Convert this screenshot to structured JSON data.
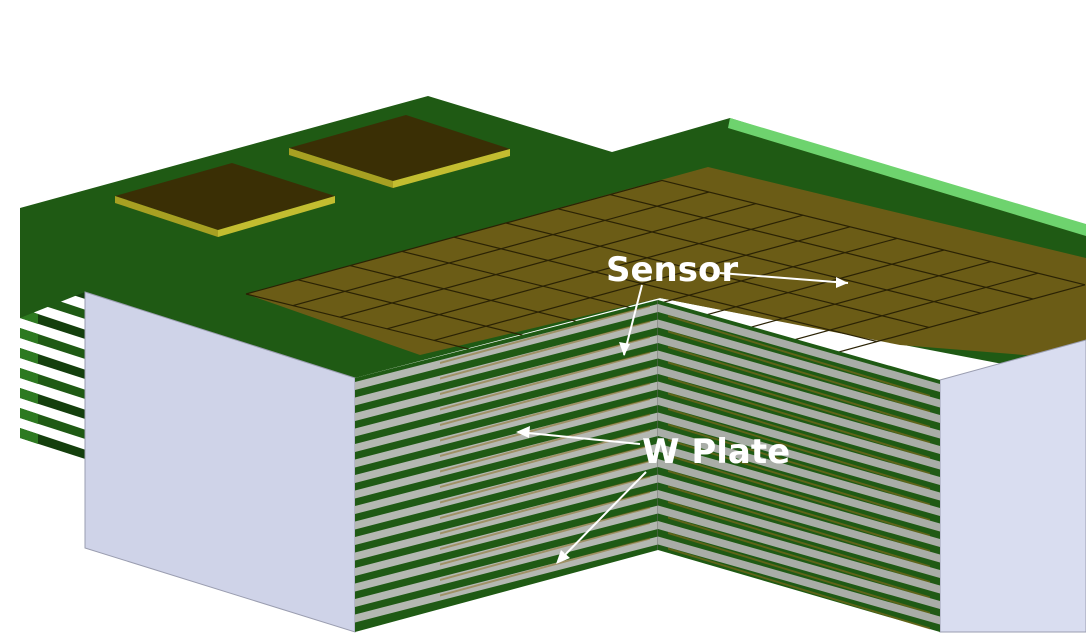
{
  "labels": {
    "sensor": "Sensor",
    "w_plate": "W Plate"
  },
  "colors": {
    "board_green": "#1f5a14",
    "board_green_dark": "#143f0d",
    "sensor_pad": "#6b5c16",
    "sensor_pad_top": "#3a2f05",
    "pad_yellow": "#a7a022",
    "w_plate_grey": "#b4b8b2",
    "side_panel": "#cfd3e8",
    "rail_green": "#6ed36e",
    "arrow": "#ffffff"
  },
  "grid": {
    "rows": 8,
    "cols": 9
  },
  "stack_layers": 16
}
